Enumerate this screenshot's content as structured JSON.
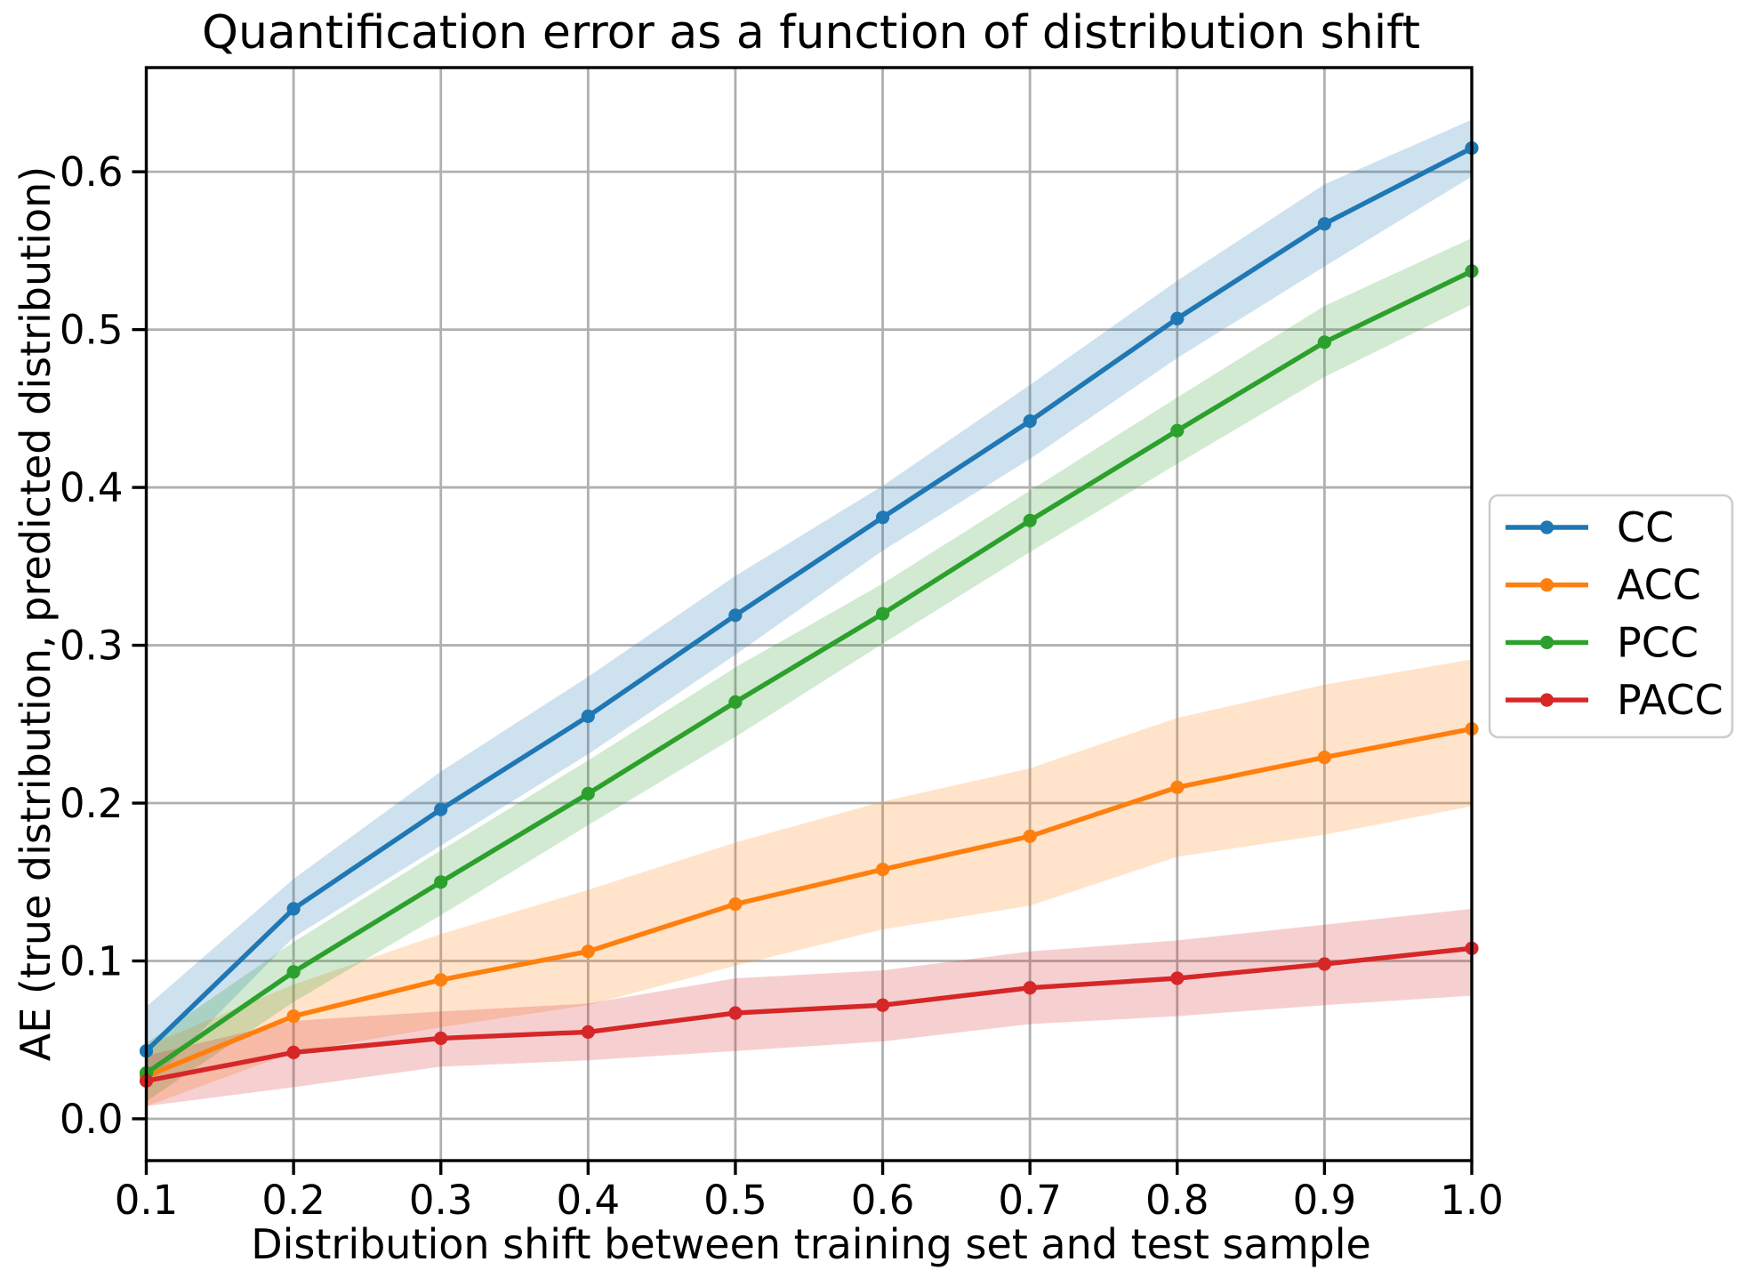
{
  "title": "Quantification error as a function of distribution shift",
  "xlabel": "Distribution shift between training set and test sample",
  "ylabel": "AE (true distribution, predicted distribution)",
  "colors": {
    "background": "#ffffff",
    "grid": "#b0b0b0",
    "spine": "#000000",
    "legend_border": "#cccccc",
    "text": "#000000"
  },
  "chart_data": {
    "type": "line",
    "x": [
      0.1,
      0.2,
      0.3,
      0.4,
      0.5,
      0.6,
      0.7,
      0.8,
      0.9,
      1.0
    ],
    "xtick_labels": [
      "0.1",
      "0.2",
      "0.3",
      "0.4",
      "0.5",
      "0.6",
      "0.7",
      "0.8",
      "0.9",
      "1.0"
    ],
    "ytick_values": [
      0.0,
      0.1,
      0.2,
      0.3,
      0.4,
      0.5,
      0.6
    ],
    "ytick_labels": [
      "0.0",
      "0.1",
      "0.2",
      "0.3",
      "0.4",
      "0.5",
      "0.6"
    ],
    "xlim": [
      0.1,
      1.0
    ],
    "ylim": [
      -0.0265,
      0.666
    ],
    "grid": true,
    "legend_position": "right-outside",
    "band_opacity": 0.22,
    "series": [
      {
        "name": "CC",
        "color": "#1f77b4",
        "values": [
          0.043,
          0.133,
          0.196,
          0.255,
          0.319,
          0.381,
          0.442,
          0.507,
          0.567,
          0.615
        ],
        "band_lower": [
          0.02,
          0.115,
          0.173,
          0.231,
          0.294,
          0.36,
          0.418,
          0.482,
          0.54,
          0.597
        ],
        "band_upper": [
          0.071,
          0.152,
          0.22,
          0.28,
          0.344,
          0.401,
          0.465,
          0.531,
          0.592,
          0.633
        ]
      },
      {
        "name": "ACC",
        "color": "#ff7f0e",
        "values": [
          0.027,
          0.065,
          0.088,
          0.106,
          0.136,
          0.158,
          0.179,
          0.21,
          0.229,
          0.247
        ],
        "band_lower": [
          0.008,
          0.042,
          0.058,
          0.072,
          0.097,
          0.12,
          0.135,
          0.166,
          0.18,
          0.198
        ],
        "band_upper": [
          0.046,
          0.085,
          0.117,
          0.145,
          0.175,
          0.201,
          0.222,
          0.254,
          0.275,
          0.291
        ]
      },
      {
        "name": "PCC",
        "color": "#2ca02c",
        "values": [
          0.029,
          0.093,
          0.15,
          0.206,
          0.264,
          0.32,
          0.379,
          0.436,
          0.492,
          0.537
        ],
        "band_lower": [
          0.011,
          0.074,
          0.129,
          0.186,
          0.242,
          0.301,
          0.359,
          0.415,
          0.47,
          0.516
        ],
        "band_upper": [
          0.048,
          0.112,
          0.17,
          0.227,
          0.286,
          0.339,
          0.398,
          0.457,
          0.515,
          0.558
        ]
      },
      {
        "name": "PACC",
        "color": "#d62728",
        "values": [
          0.024,
          0.042,
          0.051,
          0.055,
          0.067,
          0.072,
          0.083,
          0.089,
          0.098,
          0.108
        ],
        "band_lower": [
          0.008,
          0.02,
          0.033,
          0.037,
          0.043,
          0.049,
          0.06,
          0.065,
          0.072,
          0.078
        ],
        "band_upper": [
          0.04,
          0.062,
          0.068,
          0.073,
          0.089,
          0.094,
          0.106,
          0.113,
          0.123,
          0.133
        ]
      }
    ]
  }
}
